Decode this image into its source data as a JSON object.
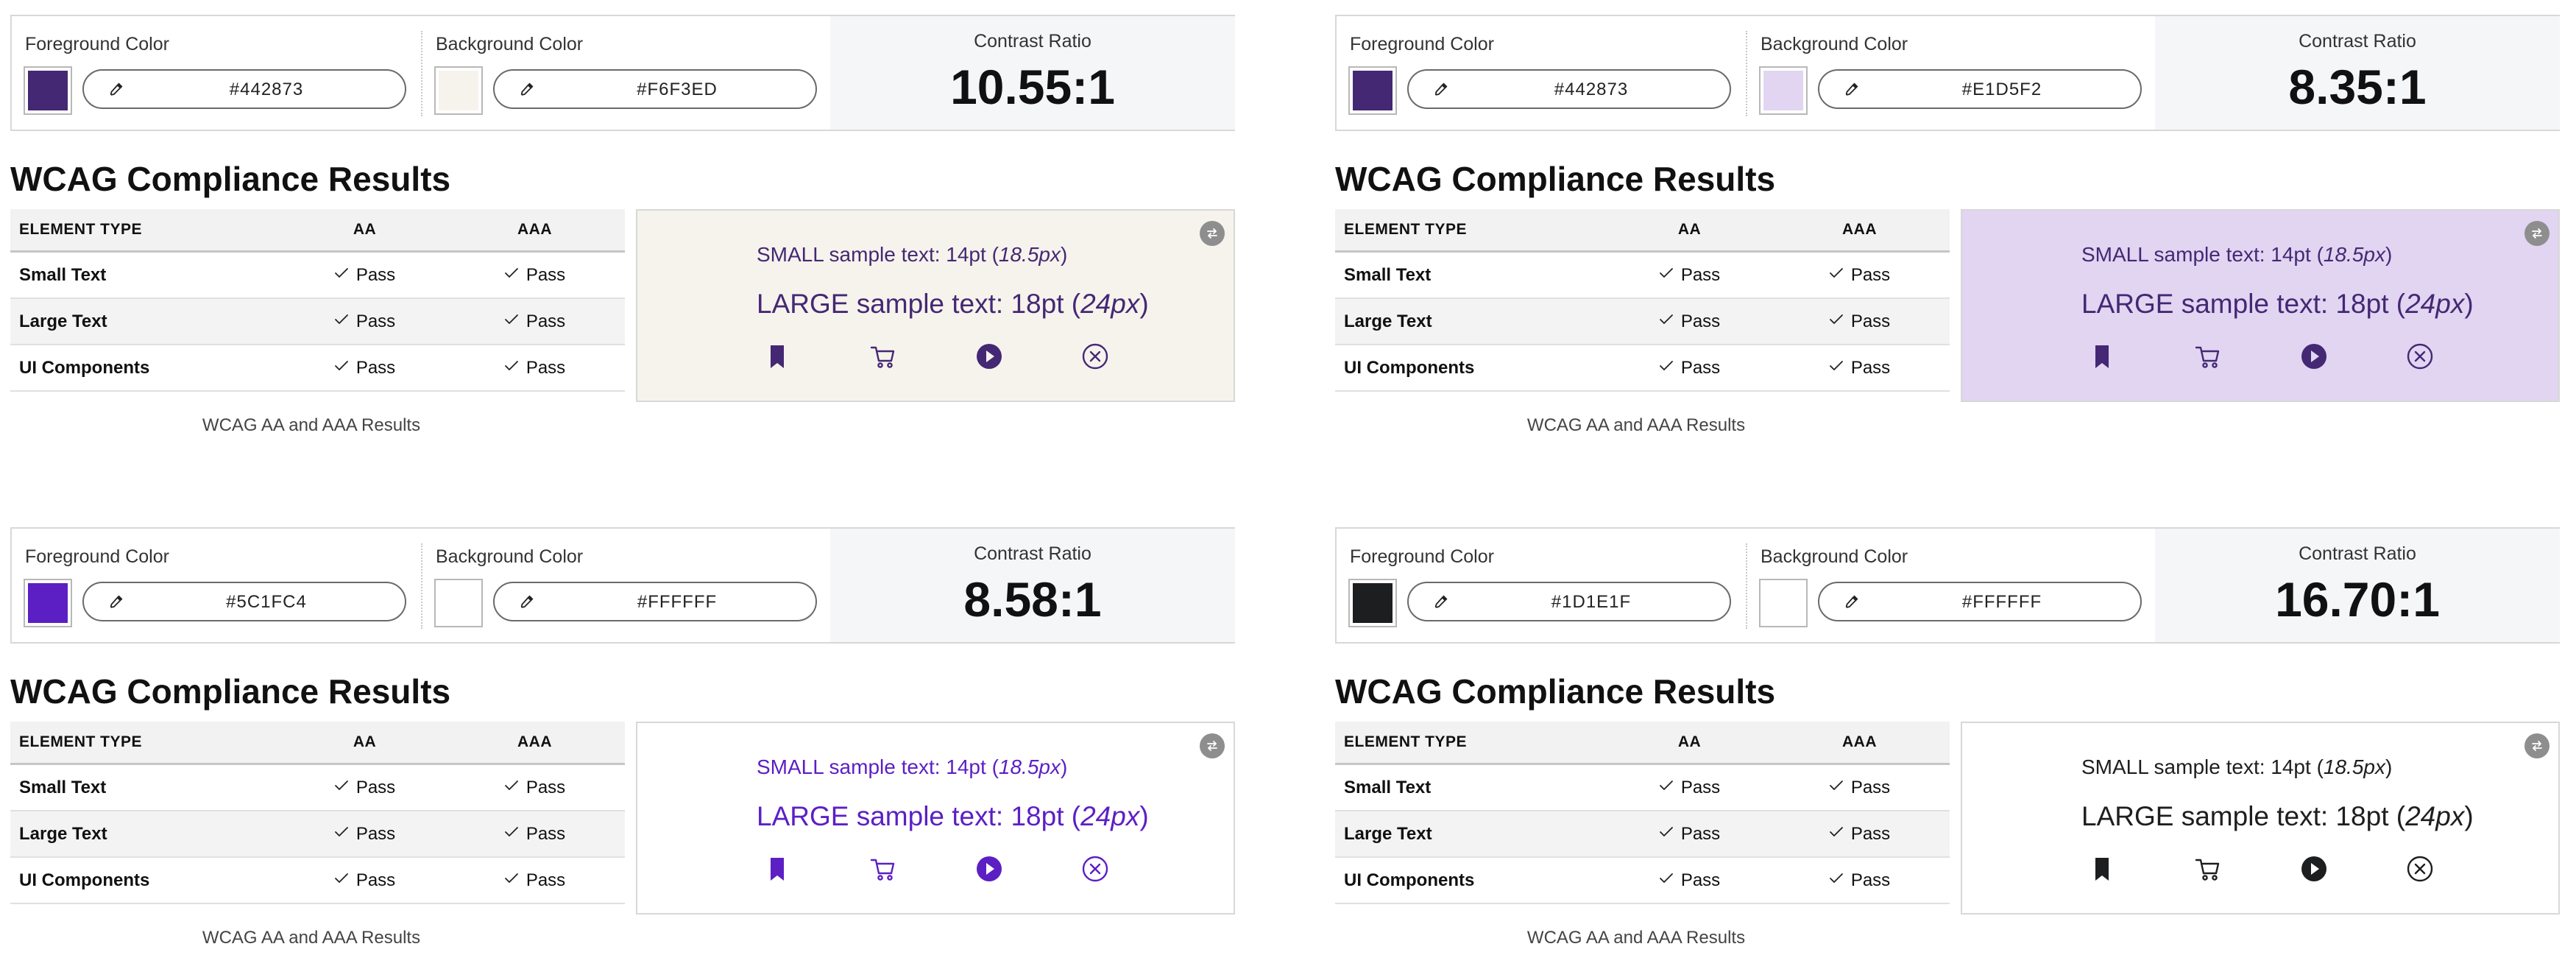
{
  "labels": {
    "foreground": "Foreground Color",
    "background": "Background Color",
    "ratio": "Contrast Ratio",
    "heading": "WCAG Compliance Results",
    "element_type": "ELEMENT TYPE",
    "aa": "AA",
    "aaa": "AAA",
    "caption": "WCAG AA and AAA Results",
    "small_prefix": "SMALL sample text: 14pt (",
    "small_em": "18.5px",
    "large_prefix": "LARGE sample text: 18pt (",
    "large_em": "24px",
    "close_paren": ")"
  },
  "row_names": [
    "Small Text",
    "Large Text",
    "UI Components"
  ],
  "icons": [
    "bookmark-icon",
    "cart-icon",
    "play-circle-icon",
    "close-circle-icon",
    "eyedropper-icon",
    "swap-icon",
    "check-icon"
  ],
  "panels": [
    {
      "foreground_hex": "#442873",
      "background_hex": "#F6F3ED",
      "contrast_ratio": "10.55:1",
      "results": [
        {
          "aa": "Pass",
          "aaa": "Pass"
        },
        {
          "aa": "Pass",
          "aaa": "Pass"
        },
        {
          "aa": "Pass",
          "aaa": "Pass"
        }
      ]
    },
    {
      "foreground_hex": "#442873",
      "background_hex": "#E1D5F2",
      "contrast_ratio": "8.35:1",
      "results": [
        {
          "aa": "Pass",
          "aaa": "Pass"
        },
        {
          "aa": "Pass",
          "aaa": "Pass"
        },
        {
          "aa": "Pass",
          "aaa": "Pass"
        }
      ]
    },
    {
      "foreground_hex": "#5C1FC4",
      "background_hex": "#FFFFFF",
      "contrast_ratio": "8.58:1",
      "results": [
        {
          "aa": "Pass",
          "aaa": "Pass"
        },
        {
          "aa": "Pass",
          "aaa": "Pass"
        },
        {
          "aa": "Pass",
          "aaa": "Pass"
        }
      ]
    },
    {
      "foreground_hex": "#1D1E1F",
      "background_hex": "#FFFFFF",
      "contrast_ratio": "16.70:1",
      "results": [
        {
          "aa": "Pass",
          "aaa": "Pass"
        },
        {
          "aa": "Pass",
          "aaa": "Pass"
        },
        {
          "aa": "Pass",
          "aaa": "Pass"
        }
      ]
    }
  ]
}
